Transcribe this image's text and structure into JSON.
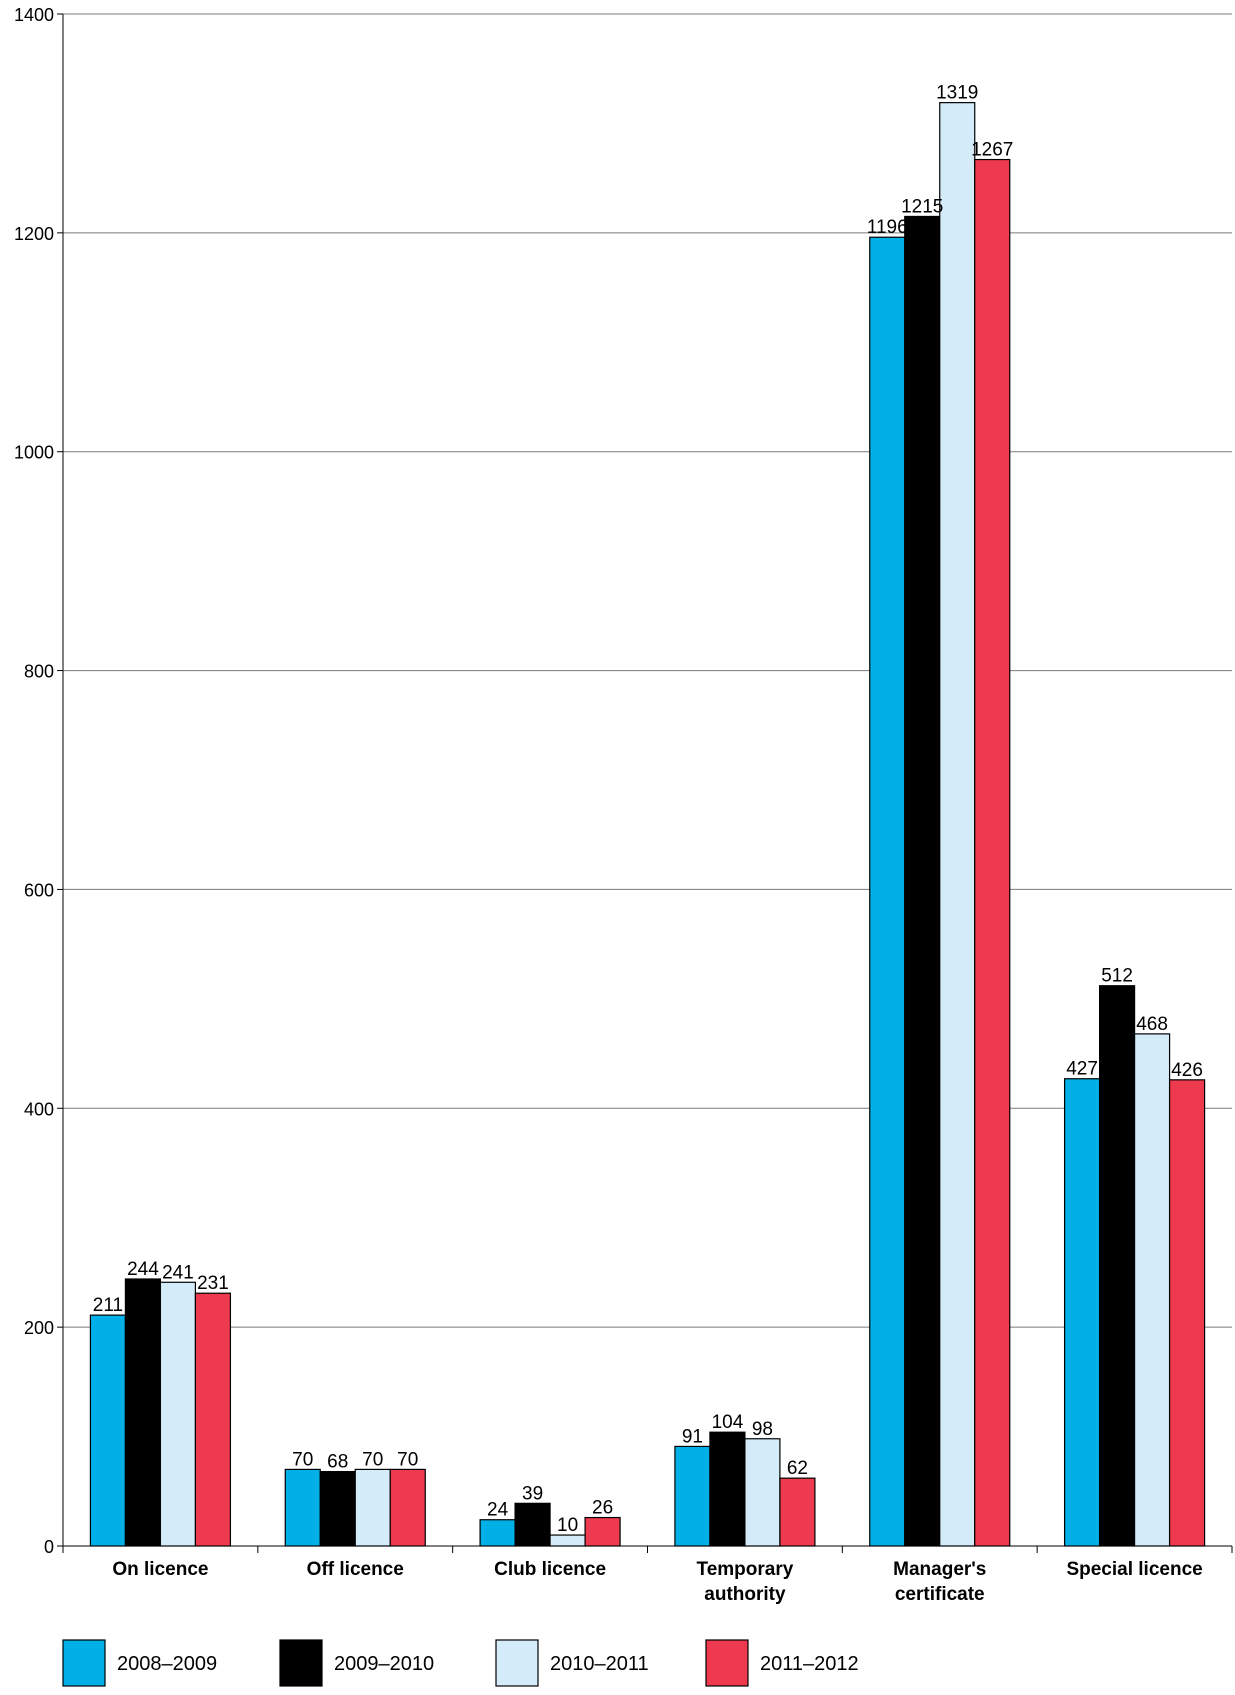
{
  "chart_data": {
    "type": "bar",
    "title": "",
    "xlabel": "",
    "ylabel": "",
    "categories": [
      [
        "On licence"
      ],
      [
        "Off licence"
      ],
      [
        "Club licence"
      ],
      [
        "Temporary",
        "authority"
      ],
      [
        "Manager's",
        "certificate"
      ],
      [
        "Special licence"
      ]
    ],
    "series": [
      {
        "name": "2008–2009",
        "color": "#00b0e6",
        "values": [
          211,
          70,
          24,
          91,
          1196,
          427
        ]
      },
      {
        "name": "2009–2010",
        "color": "#000000",
        "values": [
          244,
          68,
          39,
          104,
          1215,
          512
        ]
      },
      {
        "name": "2010–2011",
        "color": "#d4ecf9",
        "values": [
          241,
          70,
          10,
          98,
          1319,
          468
        ]
      },
      {
        "name": "2011–2012",
        "color": "#ed3a4f",
        "values": [
          231,
          70,
          26,
          62,
          1267,
          426
        ]
      }
    ],
    "ylim": [
      0,
      1400
    ],
    "yticks": [
      0,
      200,
      400,
      600,
      800,
      1000,
      1200,
      1400
    ],
    "grid": true,
    "legend": "bottom-left"
  }
}
